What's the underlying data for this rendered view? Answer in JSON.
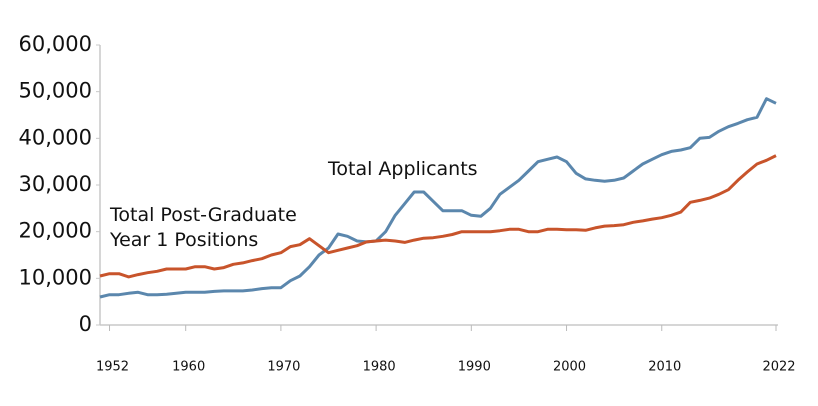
{
  "chart_data": {
    "type": "line",
    "x": [
      1951,
      1952,
      1953,
      1954,
      1955,
      1956,
      1957,
      1958,
      1959,
      1960,
      1961,
      1962,
      1963,
      1964,
      1965,
      1966,
      1967,
      1968,
      1969,
      1970,
      1971,
      1972,
      1973,
      1974,
      1975,
      1976,
      1977,
      1978,
      1979,
      1980,
      1981,
      1982,
      1983,
      1984,
      1985,
      1986,
      1987,
      1988,
      1989,
      1990,
      1991,
      1992,
      1993,
      1994,
      1995,
      1996,
      1997,
      1998,
      1999,
      2000,
      2001,
      2002,
      2003,
      2004,
      2005,
      2006,
      2007,
      2008,
      2009,
      2010,
      2011,
      2012,
      2013,
      2014,
      2015,
      2016,
      2017,
      2018,
      2019,
      2020,
      2021,
      2022
    ],
    "series": [
      {
        "name": "Total Applicants",
        "color": "#5b87ad",
        "values": [
          6000,
          6500,
          6500,
          6800,
          7000,
          6500,
          6500,
          6600,
          6800,
          7000,
          7000,
          7000,
          7200,
          7300,
          7300,
          7300,
          7500,
          7800,
          8000,
          8000,
          9500,
          10500,
          12500,
          15000,
          16500,
          19500,
          19000,
          18000,
          17800,
          18000,
          20000,
          23500,
          26000,
          28500,
          28500,
          26500,
          24500,
          24500,
          24500,
          23500,
          23300,
          25000,
          28000,
          29500,
          31000,
          33000,
          35000,
          35500,
          36000,
          35000,
          32500,
          31300,
          31000,
          30800,
          31000,
          31500,
          33000,
          34500,
          35500,
          36500,
          37200,
          37500,
          38000,
          40000,
          40200,
          41500,
          42500,
          43200,
          44000,
          44500,
          48500,
          47500
        ]
      },
      {
        "name": "Total Post-Graduate Year 1 Positions",
        "color": "#c8542b",
        "values": [
          10500,
          11000,
          11000,
          10300,
          10800,
          11200,
          11500,
          12000,
          12000,
          12000,
          12500,
          12500,
          12000,
          12300,
          13000,
          13300,
          13800,
          14200,
          15000,
          15500,
          16800,
          17200,
          18500,
          17000,
          15500,
          16000,
          16500,
          17000,
          17800,
          18000,
          18200,
          18000,
          17700,
          18200,
          18600,
          18700,
          19000,
          19400,
          20000,
          20000,
          20000,
          20000,
          20200,
          20500,
          20500,
          20000,
          20000,
          20500,
          20500,
          20400,
          20400,
          20300,
          20800,
          21200,
          21300,
          21500,
          22000,
          22300,
          22700,
          23000,
          23500,
          24200,
          26300,
          26700,
          27200,
          28000,
          29000,
          31000,
          32800,
          34500,
          35300,
          36300
        ]
      }
    ],
    "xlim": [
      1951,
      2022
    ],
    "xticks": [
      1952,
      1960,
      1970,
      1980,
      1990,
      2000,
      2010,
      2022
    ],
    "ylim": [
      0,
      60000
    ],
    "yticks": [
      0,
      {
        "value": 10000,
        "label": "10,000"
      },
      {
        "value": 20000,
        "label": "20,000"
      },
      {
        "value": 30000,
        "label": "30,000"
      },
      {
        "value": 40000,
        "label": "40,000"
      },
      {
        "value": 50000,
        "label": "50,000"
      },
      {
        "value": 60000,
        "label": "60,000"
      }
    ]
  }
}
